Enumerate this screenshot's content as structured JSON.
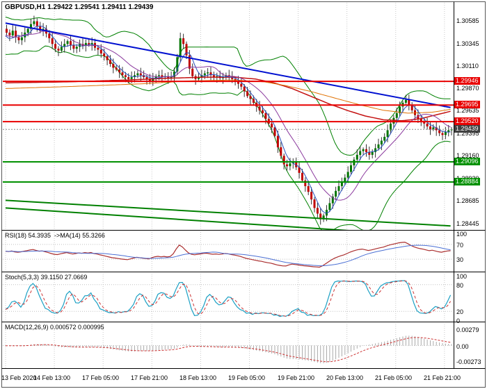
{
  "window": {
    "symbol": "GBPUSD",
    "timeframe": "H1"
  },
  "colors": {
    "background": "#ffffff",
    "grid": "#c8c8c8",
    "bull": "#007500",
    "bear": "#c00000",
    "wick": "#333333",
    "bollinger": "#008000",
    "ma_red": "#c41010",
    "ma_orange": "#e07000",
    "ma_blue": "#2a52be",
    "ma_violet": "#8b3a9e",
    "resistance": "#e80000",
    "support": "#009000",
    "current": "#888888",
    "current_flag": "#404040",
    "levelDotted": "#c0c0c0",
    "rsi_line": "#aa2e2e",
    "rsi_ma": "#4a6fd4",
    "stoch_k": "#1ba0c4",
    "stoch_d": "#cc3333",
    "macd_hist": "#aaaaaa",
    "macd_signal": "#cc3333",
    "axis_text": "#000000"
  },
  "chart_data": [
    {
      "type": "candlestick",
      "symbol": "GBPUSD",
      "timeframe": "H1",
      "header": "GBPUSD,H1 1.29422 1.29541 1.29411 1.29439",
      "ohlc": {
        "open": 1.29422,
        "high": 1.29541,
        "low": 1.29411,
        "close": 1.29439
      },
      "y_range": [
        1.284,
        1.3076
      ],
      "x_labels": [
        "13 Feb 2020",
        "14 Feb 13:00",
        "17 Feb 05:00",
        "17 Feb 21:00",
        "18 Feb 13:00",
        "19 Feb 05:00",
        "19 Feb 21:00",
        "20 Feb 13:00",
        "21 Feb 05:00",
        "21 Feb 21:00"
      ],
      "y_ticks": [
        {
          "label": "1.30585",
          "value": 1.30585
        },
        {
          "label": "1.30345",
          "value": 1.30345
        },
        {
          "label": "1.30110",
          "value": 1.3011
        },
        {
          "label": "1.29870",
          "value": 1.2987
        },
        {
          "label": "1.29635",
          "value": 1.29635
        },
        {
          "label": "1.29395",
          "value": 1.29395
        },
        {
          "label": "1.29160",
          "value": 1.2916
        },
        {
          "label": "1.28920",
          "value": 1.2892
        },
        {
          "label": "1.28685",
          "value": 1.28685
        },
        {
          "label": "1.28445",
          "value": 1.28445
        }
      ],
      "closes": [
        1.3046,
        1.3043,
        1.3048,
        1.3041,
        1.3038,
        1.3041,
        1.3046,
        1.305,
        1.3055,
        1.3058,
        1.3053,
        1.3048,
        1.305,
        1.3045,
        1.304,
        1.3034,
        1.3029,
        1.3027,
        1.3031,
        1.3034,
        1.3037,
        1.3033,
        1.3029,
        1.3031,
        1.3034,
        1.3032,
        1.3035,
        1.3033,
        1.3035,
        1.303,
        1.3028,
        1.3024,
        1.3021,
        1.3017,
        1.3013,
        1.3009,
        1.3007,
        1.3004,
        1.3001,
        1.2999,
        1.2997,
        1.2999,
        1.3001,
        1.3003,
        1.3001,
        1.2999,
        1.2997,
        1.2995,
        1.2998,
        1.3,
        1.3001,
        1.2999,
        1.3,
        1.2998,
        1.2999,
        1.3005,
        1.302,
        1.304,
        1.3034,
        1.3022,
        1.3008,
        1.3,
        1.2997,
        1.2999,
        1.3001,
        1.3003,
        1.3004,
        1.3001,
        1.2999,
        1.3,
        1.2998,
        1.2999,
        1.3001,
        1.3,
        1.2997,
        1.2995,
        1.2992,
        1.2989,
        1.2984,
        1.2979,
        1.2976,
        1.2972,
        1.2968,
        1.2964,
        1.2961,
        1.2955,
        1.295,
        1.2946,
        1.2937,
        1.2925,
        1.2916,
        1.2907,
        1.2905,
        1.2908,
        1.291,
        1.2904,
        1.2898,
        1.289,
        1.2884,
        1.2878,
        1.287,
        1.2861,
        1.2855,
        1.2849,
        1.2853,
        1.2859,
        1.2866,
        1.2873,
        1.2879,
        1.2884,
        1.2889,
        1.2893,
        1.2899,
        1.2906,
        1.2912,
        1.2917,
        1.2921,
        1.2923,
        1.292,
        1.2917,
        1.292,
        1.2924,
        1.2928,
        1.2932,
        1.2936,
        1.2943,
        1.295,
        1.2956,
        1.2961,
        1.2968,
        1.2972,
        1.2975,
        1.297,
        1.2964,
        1.2959,
        1.2955,
        1.2952,
        1.295,
        1.2947,
        1.2944,
        1.2946,
        1.2943,
        1.294,
        1.2938,
        1.2941,
        1.2943,
        1.2944
      ],
      "resistance_levels": [
        {
          "label": "1.29946",
          "value": 1.29946
        },
        {
          "label": "1.29695",
          "value": 1.29695
        },
        {
          "label": "1.29520",
          "value": 1.2952
        }
      ],
      "support_levels": [
        {
          "label": "1.29096",
          "value": 1.29096
        },
        {
          "label": "1.28884",
          "value": 1.28884
        }
      ],
      "current_price": {
        "label": "1.29439",
        "value": 1.29439
      },
      "trendlines": [
        {
          "name": "descending-resistance-trendline",
          "color": "#0010d0",
          "width": 2,
          "from": [
            0,
            1.3056
          ],
          "to": [
            146,
            1.2967
          ]
        },
        {
          "name": "lower-channel-trendline-1",
          "color": "#008000",
          "width": 2,
          "from": [
            0,
            1.2869
          ],
          "to": [
            146,
            1.2842
          ]
        },
        {
          "name": "lower-channel-trendline-2",
          "color": "#008000",
          "width": 2,
          "from": [
            0,
            1.2861
          ],
          "to": [
            146,
            1.283
          ]
        }
      ],
      "ma_slow_red": [
        [
          0,
          1.2993
        ],
        [
          20,
          1.2994
        ],
        [
          40,
          1.2996
        ],
        [
          55,
          1.2998
        ],
        [
          65,
          1.2999
        ],
        [
          75,
          1.2999
        ],
        [
          82,
          1.2997
        ],
        [
          88,
          1.2993
        ],
        [
          94,
          1.2987
        ],
        [
          100,
          1.2979
        ],
        [
          106,
          1.2971
        ],
        [
          112,
          1.2964
        ],
        [
          118,
          1.2958
        ],
        [
          124,
          1.2954
        ],
        [
          130,
          1.2953
        ],
        [
          136,
          1.2955
        ],
        [
          141,
          1.2959
        ],
        [
          146,
          1.2963
        ]
      ],
      "ma_slow_orange": [
        [
          0,
          1.2987
        ],
        [
          20,
          1.2989
        ],
        [
          45,
          1.2992
        ],
        [
          60,
          1.2995
        ],
        [
          75,
          1.2996
        ],
        [
          85,
          1.2994
        ],
        [
          92,
          1.299
        ],
        [
          100,
          1.2984
        ],
        [
          108,
          1.2977
        ],
        [
          116,
          1.297
        ],
        [
          124,
          1.2964
        ],
        [
          132,
          1.2961
        ],
        [
          140,
          1.2962
        ],
        [
          146,
          1.2965
        ]
      ],
      "overlays": {
        "bollinger": "BB(20,2)",
        "fast_ma": "SMA(5)",
        "medium_ma": "SMA(13)"
      }
    },
    {
      "type": "line",
      "name": "RSI",
      "header": "RSI(18) 54.3935  ->MA(14) 55.3266",
      "period": 18,
      "ma_period": 14,
      "value": 54.3935,
      "ma_value": 55.3266,
      "range": [
        0,
        100
      ],
      "dotted_levels": [
        70,
        30
      ],
      "levels": [
        {
          "label": "100",
          "value": 100
        },
        {
          "label": "70",
          "value": 70
        },
        {
          "label": "30",
          "value": 30
        }
      ]
    },
    {
      "type": "line",
      "name": "Stochastic",
      "header": "Stoch(5,3,3) 39.1150 27.0669",
      "k_value": 39.115,
      "d_value": 27.0669,
      "range": [
        0,
        100
      ],
      "dotted_levels": [
        80,
        20
      ],
      "levels": [
        {
          "label": "100",
          "value": 100
        },
        {
          "label": "80",
          "value": 80
        },
        {
          "label": "20",
          "value": 20
        },
        {
          "label": "0",
          "value": 0
        }
      ]
    },
    {
      "type": "macd",
      "name": "MACD",
      "header": "MACD(12,26,9) 0.000572 0.000995",
      "macd_value": 0.000572,
      "signal_value": 0.000995,
      "range": [
        -0.0035,
        0.0035
      ],
      "dotted_levels": [
        0
      ],
      "levels": [
        {
          "label": "0.00279",
          "value": 0.00279
        },
        {
          "label": "0.00",
          "value": 0
        },
        {
          "label": "-0.00273",
          "value": -0.00273
        }
      ]
    }
  ]
}
